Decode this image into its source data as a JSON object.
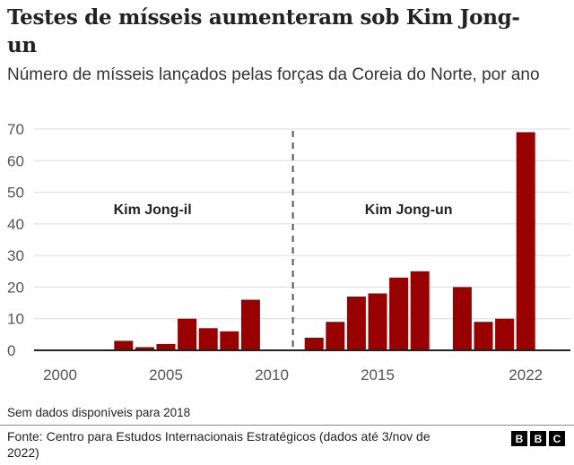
{
  "title": "Testes de mísseis aumenteram sob Kim Jong-un",
  "subtitle": "Número de mísseis lançados pelas forças da Coreia do Norte, por ano",
  "note": "Sem dados disponíveis para 2018",
  "source": "Fonte: Centro para Estudos Internacionais Estratégicos (dados até 3/nov de 2022)",
  "logo": "BBC",
  "chart_data": {
    "type": "bar",
    "title": "Testes de mísseis aumenteram sob Kim Jong-un",
    "subtitle": "Número de mísseis lançados pelas forças da Coreia do Norte, por ano",
    "x": [
      2003,
      2004,
      2005,
      2006,
      2007,
      2008,
      2009,
      2012,
      2013,
      2014,
      2015,
      2016,
      2017,
      2019,
      2020,
      2021,
      2022
    ],
    "values": [
      3,
      1,
      2,
      10,
      7,
      6,
      16,
      4,
      9,
      17,
      18,
      23,
      25,
      20,
      9,
      10,
      69
    ],
    "xticks": [
      "2000",
      "2005",
      "2010",
      "2015",
      "2022"
    ],
    "yticks": [
      "0",
      "10",
      "20",
      "30",
      "40",
      "50",
      "60",
      "70"
    ],
    "ylim": [
      0,
      70
    ],
    "grid": true,
    "bar_color": "#990000",
    "annotations": [
      {
        "text": "Kim Jong-il",
        "x": 2004.2
      },
      {
        "text": "Kim Jong-un",
        "x": 2016.3
      }
    ],
    "divider_year": 2011
  }
}
